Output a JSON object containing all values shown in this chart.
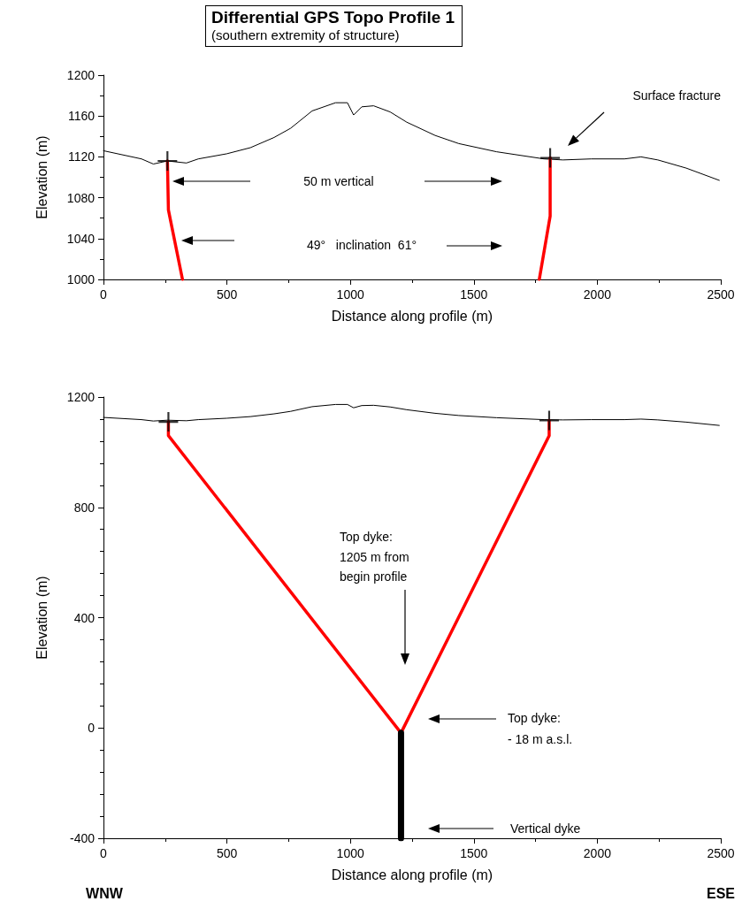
{
  "chart_data": [
    {
      "type": "line",
      "title": "Differential GPS Topo Profile 1",
      "subtitle": "(southern extremity of structure)",
      "xlabel": "Distance along profile (m)",
      "ylabel": "Elevation (m)",
      "xlim": [
        0,
        2500
      ],
      "xticks": [
        0,
        500,
        1000,
        1500,
        2000,
        2500
      ],
      "ylim": [
        1000,
        1200
      ],
      "yticks": [
        1000,
        1040,
        1080,
        1120,
        1160,
        1200
      ],
      "grid": false,
      "marker": "none",
      "series": [
        {
          "color": "#000000",
          "x": [
            0,
            154,
            202,
            259,
            336,
            384,
            499,
            595,
            691,
            758,
            845,
            940,
            988,
            1013,
            1046,
            1094,
            1161,
            1228,
            1343,
            1439,
            1592,
            1784,
            1861,
            1976,
            2110,
            2177,
            2245,
            2360,
            2494
          ],
          "values": [
            1126,
            1118,
            1113,
            1116,
            1114,
            1118,
            1123,
            1129,
            1139,
            1148,
            1165,
            1173,
            1173,
            1161,
            1169,
            1170,
            1164,
            1154,
            1141,
            1133,
            1125,
            1118,
            1117,
            1118,
            1118,
            1120,
            1117,
            1109,
            1097
          ]
        },
        {
          "color": "#ff0000",
          "x": [
            259,
            263,
            320
          ],
          "values": [
            1116,
            1068,
            1000
          ]
        },
        {
          "color": "#ff0000",
          "x": [
            1765,
            1809,
            1809
          ],
          "values": [
            1000,
            1062,
            1119
          ]
        },
        {
          "type": "scatter",
          "marker": "cross",
          "color": "#000000",
          "x": [
            259,
            1809
          ],
          "values": [
            1116,
            1119
          ]
        }
      ],
      "annotations": [
        "Surface fracture",
        "50 m vertical",
        "49°   inclination  61°"
      ]
    },
    {
      "type": "line",
      "xlabel": "Distance along profile (m)",
      "ylabel": "Elevation (m)",
      "xlim": [
        0,
        2500
      ],
      "xticks": [
        0,
        500,
        1000,
        1500,
        2000,
        2500
      ],
      "ylim": [
        -400,
        1200
      ],
      "yticks": [
        -400,
        0,
        400,
        800,
        1200
      ],
      "grid": false,
      "marker": "none",
      "series": [
        {
          "color": "#000000",
          "x": [
            0,
            154,
            202,
            259,
            336,
            384,
            499,
            595,
            691,
            758,
            845,
            940,
            988,
            1013,
            1046,
            1094,
            1161,
            1228,
            1343,
            1439,
            1592,
            1784,
            1861,
            1976,
            2110,
            2177,
            2245,
            2360,
            2494
          ],
          "values": [
            1126,
            1118,
            1113,
            1116,
            1114,
            1118,
            1123,
            1129,
            1139,
            1148,
            1165,
            1173,
            1173,
            1161,
            1169,
            1170,
            1164,
            1154,
            1141,
            1133,
            1125,
            1118,
            1117,
            1118,
            1118,
            1120,
            1117,
            1109,
            1097
          ]
        },
        {
          "color": "#ff0000",
          "x": [
            263,
            263,
            1205
          ],
          "values": [
            1110,
            1060,
            -18
          ]
        },
        {
          "color": "#ff0000",
          "x": [
            1205,
            1805,
            1805
          ],
          "values": [
            -18,
            1060,
            1115
          ]
        },
        {
          "color": "#000000",
          "x": [
            1205,
            1205
          ],
          "values": [
            -18,
            -400
          ]
        },
        {
          "type": "scatter",
          "marker": "cross",
          "color": "#000000",
          "x": [
            263,
            1805
          ],
          "values": [
            1110,
            1115
          ]
        }
      ],
      "annotations": [
        "Top dyke:\n1205 m from\nbegin profile",
        "Top dyke:\n- 18 m a.s.l.",
        "Vertical dyke",
        "WNW",
        "ESE"
      ]
    }
  ]
}
